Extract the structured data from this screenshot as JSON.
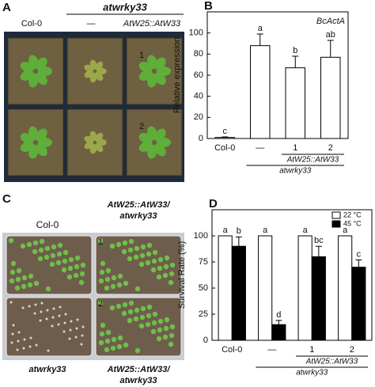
{
  "panel_a": {
    "letter": "A",
    "header": "atwrky33",
    "col0": "Col-0",
    "mutant": "—",
    "complemented": "AtW25::AtW33",
    "line_1": "1",
    "line_2": "2"
  },
  "panel_c": {
    "letter": "C",
    "top_left": "Col-0",
    "top_right": [
      "AtW25::AtW33/",
      "atwrky33"
    ],
    "bottom_left": "atwrky33",
    "bottom_right": [
      "AtW25::AtW33/",
      "atwrky33"
    ],
    "line_1": "1",
    "line_2": "2"
  },
  "chart_data": [
    {
      "type": "bar",
      "panel": "B",
      "annotation": "BcActA",
      "y_label": "Relative expression",
      "categories": [
        "Col-0",
        "—",
        "1",
        "2"
      ],
      "group_labels": [
        "AtW25::AtW33",
        "atwrky33"
      ],
      "values": [
        1,
        88,
        67,
        77
      ],
      "errors": [
        0.5,
        11,
        11,
        16
      ],
      "letters": [
        "c",
        "a",
        "b",
        "ab"
      ],
      "color": "#ffffff",
      "ylim": [
        0,
        120
      ],
      "yticks": [
        0,
        20,
        40,
        60,
        80,
        100
      ]
    },
    {
      "type": "bar",
      "panel": "D",
      "y_label": "Survival Rate (%)",
      "categories": [
        "Col-0",
        "—",
        "1",
        "2"
      ],
      "group_labels": [
        "AtW25::AtW33",
        "atwrky33"
      ],
      "series": [
        {
          "name": "22 °C",
          "color": "#ffffff",
          "values": [
            100,
            100,
            100,
            100
          ],
          "letters": [
            "a",
            "a",
            "a",
            "a"
          ]
        },
        {
          "name": "45 °C",
          "color": "#000000",
          "values": [
            90,
            15,
            80,
            70
          ],
          "errors": [
            9,
            4,
            10,
            7
          ],
          "letters": [
            "b",
            "d",
            "bc",
            "c"
          ]
        }
      ],
      "ylim": [
        0,
        125
      ],
      "yticks": [
        0,
        25,
        50,
        75,
        100
      ],
      "legend": "upper right"
    }
  ]
}
